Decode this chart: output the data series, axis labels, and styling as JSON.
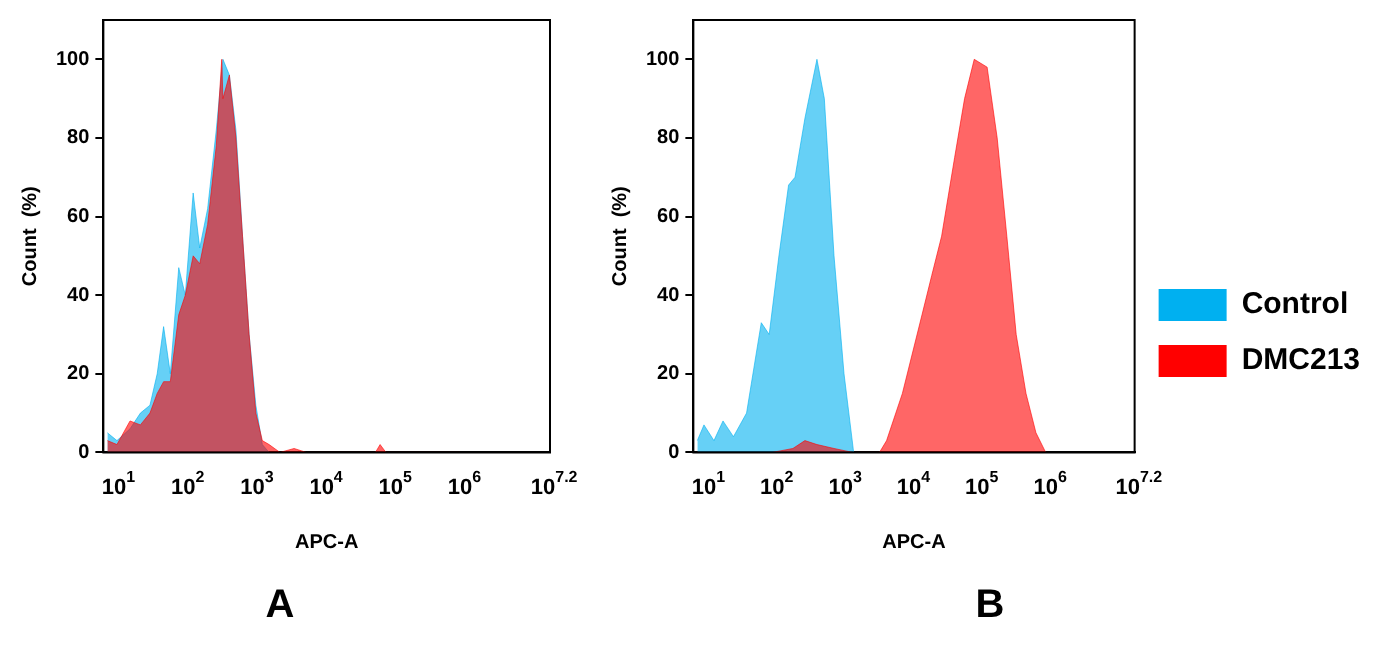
{
  "chart_data": [
    {
      "type": "area",
      "title": "A",
      "xlabel": "APC-A",
      "ylabel": "Count  (%)",
      "log": "x",
      "xlim": [
        7,
        20000000
      ],
      "ylim": [
        0,
        110
      ],
      "xticks": [
        {
          "value": 10,
          "label": "10$^{1}$"
        },
        {
          "value": 100,
          "label": "10$^{2}$"
        },
        {
          "value": 1000,
          "label": "10$^{3}$"
        },
        {
          "value": 10000,
          "label": "10$^{4}$"
        },
        {
          "value": 100000,
          "label": "10$^{5}$"
        },
        {
          "value": 1000000,
          "label": "10$^{6}$"
        },
        {
          "value": 15848932,
          "label": "10$^{7.2}$"
        }
      ],
      "yticks": [
        0,
        20,
        40,
        60,
        80,
        100
      ],
      "legend": false,
      "grid": false,
      "series": [
        {
          "color": "#00b0f0",
          "x": [
            8,
            11,
            17,
            24,
            33,
            42,
            52,
            65,
            86,
            107,
            139,
            173,
            225,
            300,
            374,
            464,
            577,
            719,
            895,
            1120,
            1390,
            1740
          ],
          "values": [
            5,
            3,
            6,
            10,
            12,
            20,
            32,
            20,
            47,
            40,
            66,
            52,
            62,
            82,
            100,
            96,
            82,
            55,
            30,
            12,
            2,
            0
          ]
        },
        {
          "color": "#ff0000",
          "x": [
            8,
            11,
            17,
            24,
            33,
            42,
            52,
            65,
            86,
            107,
            139,
            173,
            225,
            300,
            360,
            374,
            464,
            577,
            719,
            895,
            1120,
            1390,
            1740,
            2500,
            4000,
            6000,
            60000,
            70000,
            85000,
            1000000
          ],
          "values": [
            3,
            2,
            8,
            7,
            10,
            15,
            18,
            18,
            35,
            40,
            50,
            48,
            58,
            78,
            100,
            90,
            96,
            80,
            55,
            30,
            10,
            3,
            2,
            0,
            1,
            0,
            0,
            2,
            0,
            0
          ]
        }
      ]
    },
    {
      "type": "area",
      "title": "B",
      "xlabel": "APC-A",
      "ylabel": "Count  (%)",
      "log": "x",
      "xlim": [
        7,
        20000000
      ],
      "ylim": [
        0,
        110
      ],
      "xticks": [
        {
          "value": 10,
          "label": "10$^{1}$"
        },
        {
          "value": 100,
          "label": "10$^{2}$"
        },
        {
          "value": 1000,
          "label": "10$^{3}$"
        },
        {
          "value": 10000,
          "label": "10$^{4}$"
        },
        {
          "value": 100000,
          "label": "10$^{5}$"
        },
        {
          "value": 1000000,
          "label": "10$^{6}$"
        },
        {
          "value": 15848932,
          "label": "10$^{7.2}$"
        }
      ],
      "yticks": [
        0,
        20,
        40,
        60,
        80,
        100
      ],
      "legend": "right",
      "grid": false,
      "series": [
        {
          "name": "Control",
          "color": "#00b0f0",
          "x": [
            8,
            10,
            14,
            19,
            27,
            42,
            58,
            69,
            90,
            125,
            173,
            215,
            300,
            450,
            577,
            800,
            1120,
            1550
          ],
          "values": [
            3,
            7,
            3,
            8,
            4,
            10,
            25,
            33,
            30,
            50,
            68,
            70,
            85,
            100,
            90,
            50,
            20,
            0
          ]
        },
        {
          "name": "DMC213",
          "color": "#ff0000",
          "x": [
            8,
            100,
            200,
            300,
            450,
            800,
            1500,
            3700,
            4700,
            8000,
            15500,
            21500,
            30000,
            46500,
            65000,
            90000,
            139000,
            195000,
            270000,
            370000,
            515000,
            720000,
            1000000
          ],
          "values": [
            0,
            0,
            1,
            3,
            2,
            1,
            0,
            0,
            3,
            15,
            35,
            45,
            55,
            75,
            90,
            100,
            98,
            80,
            55,
            30,
            15,
            5,
            0
          ]
        }
      ]
    }
  ]
}
